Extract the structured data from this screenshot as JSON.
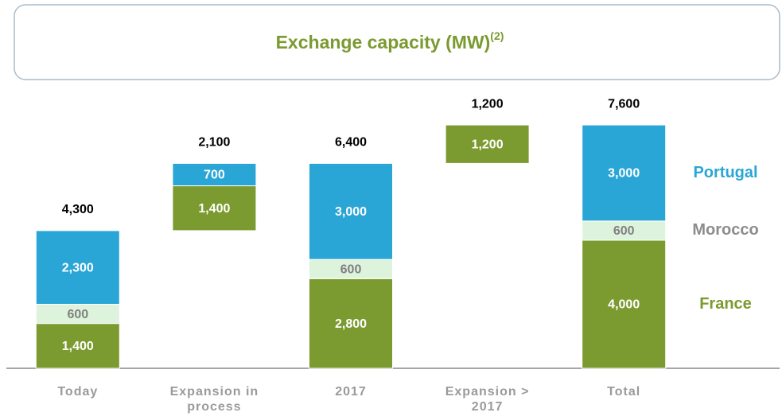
{
  "chart_data": {
    "type": "waterfall",
    "title": "Exchange capacity (MW)",
    "title_superscript": "(2)",
    "categories": [
      "Today",
      "Expansion in process",
      "2017",
      "Expansion > 2017",
      "Total"
    ],
    "series": [
      {
        "name": "France",
        "color": "#7b9a2f",
        "label_color": "#ffffff",
        "values": [
          1400,
          1400,
          2800,
          1200,
          4000
        ],
        "value_labels": [
          "1,400",
          "1,400",
          "2,800",
          "1,200",
          "4,000"
        ]
      },
      {
        "name": "Morocco",
        "color": "#def3dc",
        "label_color": "#808080",
        "values": [
          600,
          null,
          600,
          null,
          600
        ],
        "value_labels": [
          "600",
          null,
          "600",
          null,
          "600"
        ]
      },
      {
        "name": "Portugal",
        "color": "#2aa6d6",
        "label_color": "#ffffff",
        "values": [
          2300,
          700,
          3000,
          null,
          3000
        ],
        "value_labels": [
          "2,300",
          "700",
          "3,000",
          null,
          "3,000"
        ]
      }
    ],
    "totals": [
      4300,
      2100,
      6400,
      1200,
      7600
    ],
    "total_labels": [
      "4,300",
      "2,100",
      "6,400",
      "1,200",
      "7,600"
    ],
    "ylim": [
      0,
      8000
    ]
  }
}
